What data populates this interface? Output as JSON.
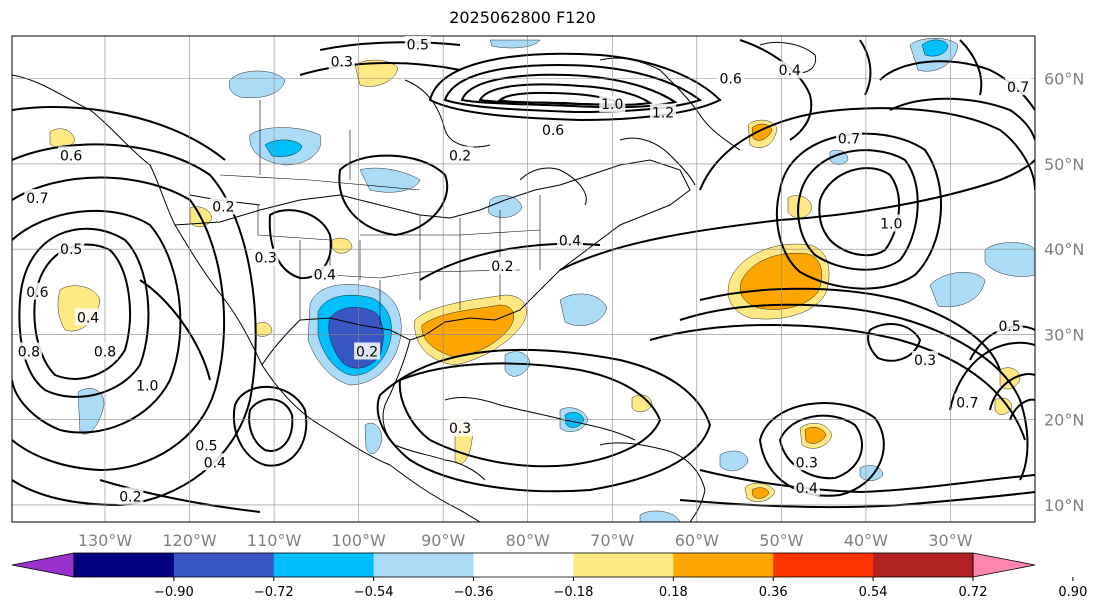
{
  "title": "2025062800 F120",
  "map": {
    "lon_labels": [
      "130°W",
      "120°W",
      "110°W",
      "100°W",
      "90°W",
      "80°W",
      "70°W",
      "60°W",
      "50°W",
      "40°W",
      "30°W"
    ],
    "lon_values": [
      -130,
      -120,
      -110,
      -100,
      -90,
      -80,
      -70,
      -60,
      -50,
      -40,
      -30
    ],
    "lat_labels": [
      "60°N",
      "50°N",
      "40°N",
      "30°N",
      "20°N",
      "10°N"
    ],
    "lat_values": [
      60,
      50,
      40,
      30,
      20,
      10
    ],
    "extent": {
      "lon_min": -141,
      "lon_max": -20,
      "lat_min": 8,
      "lat_max": 65
    },
    "grid_color": "#888888",
    "contour_color": "#000000"
  },
  "colorbar": {
    "tick_labels": [
      "−0.90",
      "−0.72",
      "−0.54",
      "−0.36",
      "−0.18",
      "0.18",
      "0.36",
      "0.54",
      "0.72",
      "0.90"
    ],
    "levels": [
      -0.9,
      -0.72,
      -0.54,
      -0.36,
      -0.18,
      0.18,
      0.36,
      0.54,
      0.72,
      0.9
    ],
    "colors": [
      "#9932cc",
      "#000080",
      "#3a56c4",
      "#00bfff",
      "#aadcf8",
      "#ffffff",
      "#ffe985",
      "#ffa500",
      "#ff3300",
      "#b22222",
      "#ff86b0"
    ]
  },
  "contour_labels": [
    {
      "text": "0.5",
      "lon": -93,
      "lat": 64
    },
    {
      "text": "0.3",
      "lon": -102,
      "lat": 62
    },
    {
      "text": "0.6",
      "lon": -56,
      "lat": 60
    },
    {
      "text": "0.4",
      "lon": -49,
      "lat": 61
    },
    {
      "text": "1.0",
      "lon": -70,
      "lat": 57
    },
    {
      "text": "1.2",
      "lon": -64,
      "lat": 56
    },
    {
      "text": "0.6",
      "lon": -77,
      "lat": 54
    },
    {
      "text": "0.7",
      "lon": -42,
      "lat": 53
    },
    {
      "text": "0.6",
      "lon": -134,
      "lat": 51
    },
    {
      "text": "0.7",
      "lon": -138,
      "lat": 46
    },
    {
      "text": "0.2",
      "lon": -116,
      "lat": 45
    },
    {
      "text": "0.2",
      "lon": -88,
      "lat": 51
    },
    {
      "text": "0.3",
      "lon": -111,
      "lat": 39
    },
    {
      "text": "0.4",
      "lon": -104,
      "lat": 37
    },
    {
      "text": "0.2",
      "lon": -83,
      "lat": 38
    },
    {
      "text": "0.4",
      "lon": -75,
      "lat": 41
    },
    {
      "text": "1.0",
      "lon": -37,
      "lat": 43
    },
    {
      "text": "0.5",
      "lon": -134,
      "lat": 40
    },
    {
      "text": "0.6",
      "lon": -138,
      "lat": 35
    },
    {
      "text": "0.4",
      "lon": -132,
      "lat": 32
    },
    {
      "text": "0.8",
      "lon": -139,
      "lat": 28
    },
    {
      "text": "0.8",
      "lon": -130,
      "lat": 28
    },
    {
      "text": "1.0",
      "lon": -125,
      "lat": 24
    },
    {
      "text": "0.2",
      "lon": -99,
      "lat": 28
    },
    {
      "text": "0.3",
      "lon": -88,
      "lat": 19
    },
    {
      "text": "0.5",
      "lon": -118,
      "lat": 17
    },
    {
      "text": "0.4",
      "lon": -117,
      "lat": 15
    },
    {
      "text": "0.2",
      "lon": -127,
      "lat": 11
    },
    {
      "text": "0.3",
      "lon": -33,
      "lat": 27
    },
    {
      "text": "0.5",
      "lon": -23,
      "lat": 31
    },
    {
      "text": "0.7",
      "lon": -28,
      "lat": 22
    },
    {
      "text": "0.3",
      "lon": -47,
      "lat": 15
    },
    {
      "text": "0.4",
      "lon": -47,
      "lat": 12
    },
    {
      "text": "0.7",
      "lon": -22,
      "lat": 59
    }
  ]
}
